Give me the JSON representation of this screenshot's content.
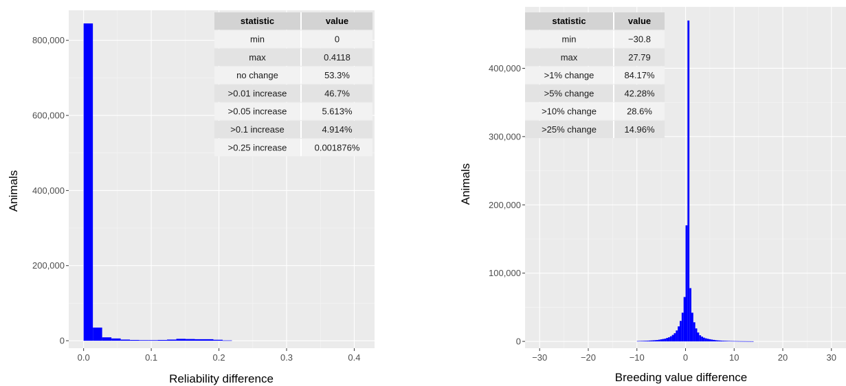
{
  "chart_data": [
    {
      "type": "bar",
      "xlabel": "Reliability difference",
      "ylabel": "Animals",
      "xlim": [
        -0.022,
        0.43
      ],
      "ylim": [
        -20000,
        880000
      ],
      "x_ticks": [
        0.0,
        0.1,
        0.2,
        0.3,
        0.4
      ],
      "x_tick_labels": [
        "0.0",
        "0.1",
        "0.2",
        "0.3",
        "0.4"
      ],
      "y_ticks": [
        0,
        200000,
        400000,
        600000,
        800000
      ],
      "y_tick_labels": [
        "0",
        "200,000",
        "400,000",
        "600,000",
        "800,000"
      ],
      "bin_width": 0.0137,
      "bins": [
        {
          "x": 0.0,
          "y": 845000
        },
        {
          "x": 0.0137,
          "y": 35000
        },
        {
          "x": 0.0274,
          "y": 9000
        },
        {
          "x": 0.0411,
          "y": 6000
        },
        {
          "x": 0.0548,
          "y": 3000
        },
        {
          "x": 0.0685,
          "y": 2000
        },
        {
          "x": 0.0822,
          "y": 1500
        },
        {
          "x": 0.0959,
          "y": 1500
        },
        {
          "x": 0.1096,
          "y": 2000
        },
        {
          "x": 0.1233,
          "y": 3000
        },
        {
          "x": 0.137,
          "y": 5000
        },
        {
          "x": 0.1507,
          "y": 4500
        },
        {
          "x": 0.1644,
          "y": 4000
        },
        {
          "x": 0.1781,
          "y": 4000
        },
        {
          "x": 0.1918,
          "y": 2500
        },
        {
          "x": 0.2055,
          "y": 800
        }
      ],
      "bar_color": "#0000ff",
      "grid": true,
      "table": {
        "headers": [
          "statistic",
          "value"
        ],
        "rows": [
          [
            "min",
            "0"
          ],
          [
            "max",
            "0.4118"
          ],
          [
            "no change",
            "53.3%"
          ],
          [
            ">0.01 increase",
            "46.7%"
          ],
          [
            ">0.05 increase",
            "5.613%"
          ],
          [
            ">0.1 increase",
            "4.914%"
          ],
          [
            ">0.25 increase",
            "0.001876%"
          ]
        ]
      }
    },
    {
      "type": "bar",
      "xlabel": "Breeding value difference",
      "ylabel": "Animals",
      "xlim": [
        -33,
        33
      ],
      "ylim": [
        -10000,
        490000
      ],
      "x_ticks": [
        -30,
        -20,
        -10,
        0,
        10,
        20,
        30
      ],
      "x_tick_labels": [
        "−30",
        "−20",
        "−10",
        "0",
        "10",
        "20",
        "30"
      ],
      "y_ticks": [
        0,
        100000,
        200000,
        300000,
        400000
      ],
      "y_tick_labels": [
        "0",
        "100,000",
        "200,000",
        "300,000",
        "400,000"
      ],
      "bin_width": 0.4,
      "bins": [
        {
          "x": -10.0,
          "y": 500
        },
        {
          "x": -9.6,
          "y": 600
        },
        {
          "x": -9.2,
          "y": 700
        },
        {
          "x": -8.8,
          "y": 800
        },
        {
          "x": -8.4,
          "y": 900
        },
        {
          "x": -8.0,
          "y": 1000
        },
        {
          "x": -7.6,
          "y": 1200
        },
        {
          "x": -7.2,
          "y": 1400
        },
        {
          "x": -6.8,
          "y": 1600
        },
        {
          "x": -6.4,
          "y": 1800
        },
        {
          "x": -6.0,
          "y": 2000
        },
        {
          "x": -5.6,
          "y": 2500
        },
        {
          "x": -5.2,
          "y": 3000
        },
        {
          "x": -4.8,
          "y": 3500
        },
        {
          "x": -4.4,
          "y": 4000
        },
        {
          "x": -4.0,
          "y": 5000
        },
        {
          "x": -3.6,
          "y": 6000
        },
        {
          "x": -3.2,
          "y": 7500
        },
        {
          "x": -2.8,
          "y": 9500
        },
        {
          "x": -2.4,
          "y": 12000
        },
        {
          "x": -2.0,
          "y": 16000
        },
        {
          "x": -1.6,
          "y": 22000
        },
        {
          "x": -1.2,
          "y": 30000
        },
        {
          "x": -0.8,
          "y": 42000
        },
        {
          "x": -0.4,
          "y": 65000
        },
        {
          "x": 0.0,
          "y": 170000
        },
        {
          "x": 0.4,
          "y": 470000
        },
        {
          "x": 0.8,
          "y": 78000
        },
        {
          "x": 1.2,
          "y": 42000
        },
        {
          "x": 1.6,
          "y": 28000
        },
        {
          "x": 2.0,
          "y": 19000
        },
        {
          "x": 2.4,
          "y": 13000
        },
        {
          "x": 2.8,
          "y": 9000
        },
        {
          "x": 3.2,
          "y": 7000
        },
        {
          "x": 3.6,
          "y": 5500
        },
        {
          "x": 4.0,
          "y": 4500
        },
        {
          "x": 4.4,
          "y": 3800
        },
        {
          "x": 4.8,
          "y": 3200
        },
        {
          "x": 5.2,
          "y": 2700
        },
        {
          "x": 5.6,
          "y": 2200
        },
        {
          "x": 6.0,
          "y": 1800
        },
        {
          "x": 6.4,
          "y": 1500
        },
        {
          "x": 6.8,
          "y": 1300
        },
        {
          "x": 7.2,
          "y": 1100
        },
        {
          "x": 7.6,
          "y": 950
        },
        {
          "x": 8.0,
          "y": 850
        },
        {
          "x": 8.4,
          "y": 750
        },
        {
          "x": 8.8,
          "y": 650
        },
        {
          "x": 9.2,
          "y": 550
        },
        {
          "x": 9.6,
          "y": 500
        },
        {
          "x": 10.0,
          "y": 450
        },
        {
          "x": 10.4,
          "y": 400
        },
        {
          "x": 10.8,
          "y": 350
        },
        {
          "x": 11.2,
          "y": 300
        },
        {
          "x": 11.6,
          "y": 280
        },
        {
          "x": 12.0,
          "y": 250
        },
        {
          "x": 12.4,
          "y": 220
        },
        {
          "x": 12.8,
          "y": 200
        },
        {
          "x": 13.2,
          "y": 180
        },
        {
          "x": 13.6,
          "y": 160
        }
      ],
      "bar_color": "#0000ff",
      "grid": true,
      "table": {
        "headers": [
          "statistic",
          "value"
        ],
        "rows": [
          [
            "min",
            "−30.8"
          ],
          [
            "max",
            "27.79"
          ],
          [
            ">1% change",
            "84.17%"
          ],
          [
            ">5% change",
            "42.28%"
          ],
          [
            ">10% change",
            "28.6%"
          ],
          [
            ">25% change",
            "14.96%"
          ]
        ]
      }
    }
  ]
}
